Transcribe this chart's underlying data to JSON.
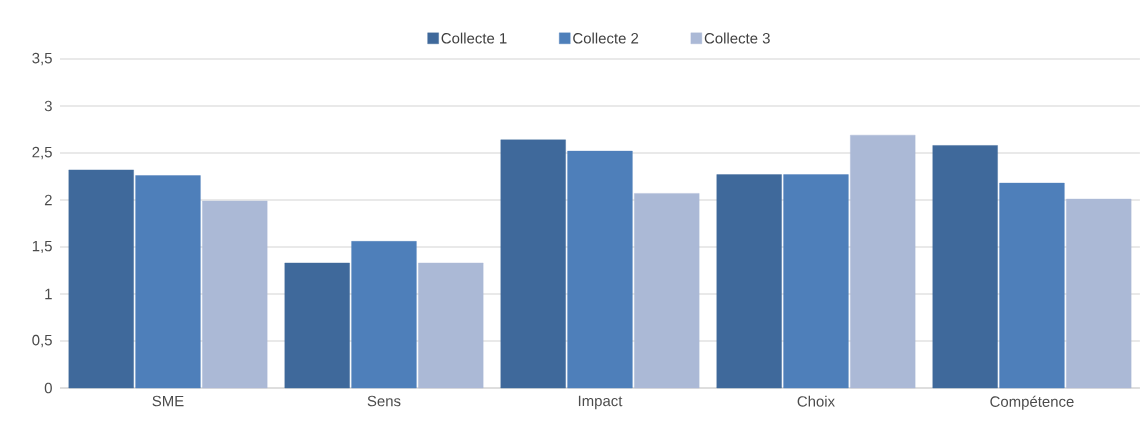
{
  "chart_data": {
    "type": "bar",
    "categories": [
      "SME",
      "Sens",
      "Impact",
      "Choix",
      "Compétence"
    ],
    "series": [
      {
        "name": "Collecte 1",
        "color": "#3f699b",
        "values": [
          2.32,
          1.33,
          2.64,
          2.27,
          2.58
        ]
      },
      {
        "name": "Collecte 2",
        "color": "#4e7fba",
        "values": [
          2.26,
          1.56,
          2.52,
          2.27,
          2.18
        ]
      },
      {
        "name": "Collecte 3",
        "color": "#abb9d6",
        "values": [
          1.99,
          1.33,
          2.07,
          2.69,
          2.01
        ]
      }
    ],
    "ylim": [
      0,
      3.5
    ],
    "yticks": [
      0,
      {
        "value": 0.5,
        "label": "0,5"
      },
      1,
      {
        "value": 1.5,
        "label": "1,5"
      },
      2,
      {
        "value": 2.5,
        "label": "2,5"
      },
      3,
      {
        "value": 3.5,
        "label": "3,5"
      }
    ],
    "grid": "y",
    "legend": "top"
  }
}
